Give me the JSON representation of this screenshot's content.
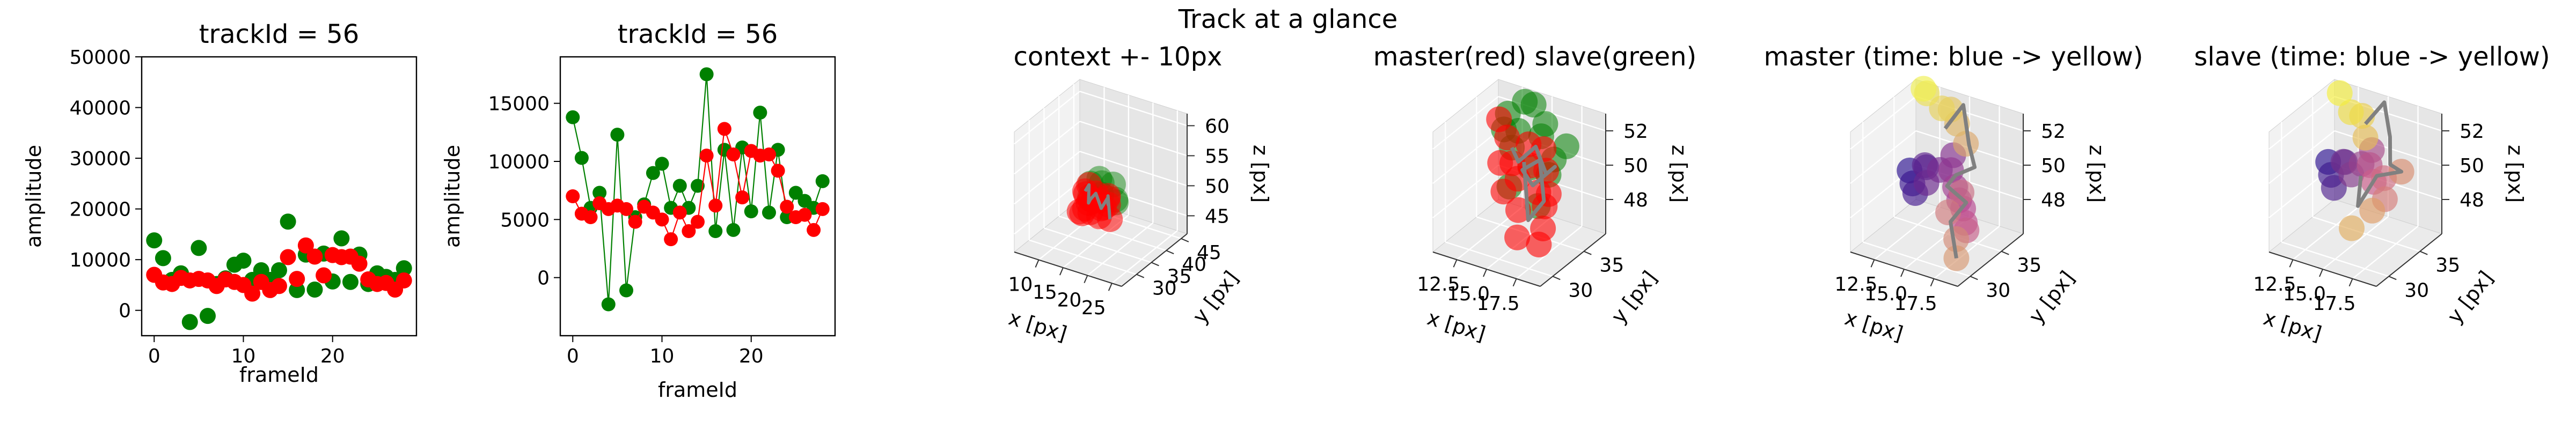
{
  "figure": {
    "suptitle": "Track at a glance"
  },
  "colors": {
    "master": "#ff0000",
    "slave": "#008000",
    "line": "#808080",
    "pane_left": "#f2f2f2",
    "pane_right": "#e6e6e6",
    "pane_floor": "#ebebeb",
    "grid": "#ffffff",
    "time_start_master": "#2a0f8f",
    "time_end_master": "#f0f050",
    "time_end_slave": "#f4ee3c"
  },
  "chart_data": [
    {
      "type": "scatter",
      "title": "trackId = 56",
      "xlabel": "frameId",
      "ylabel": "amplitude",
      "xlim": [
        -1.4,
        29.4
      ],
      "ylim": [
        -5000,
        50000
      ],
      "xticks": [
        "0",
        "10",
        "20"
      ],
      "xtick_values": [
        0,
        10,
        20
      ],
      "yticks": [
        "0",
        "10000",
        "20000",
        "30000",
        "40000",
        "50000"
      ],
      "ytick_values": [
        0,
        10000,
        20000,
        30000,
        40000,
        50000
      ],
      "series": [
        {
          "color": "green",
          "x": [
            0,
            1,
            2,
            3,
            4,
            5,
            6,
            7,
            8,
            9,
            10,
            11,
            12,
            13,
            14,
            15,
            16,
            17,
            18,
            19,
            20,
            21,
            22,
            23,
            24,
            25,
            26,
            27,
            28
          ],
          "values": [
            13800,
            10300,
            6000,
            7300,
            -2300,
            12300,
            -1100,
            5200,
            6300,
            9000,
            9800,
            6000,
            7900,
            6000,
            7900,
            17500,
            4000,
            11000,
            4100,
            11200,
            5700,
            14200,
            5600,
            11000,
            5200,
            7300,
            6600,
            6000,
            8300
          ]
        },
        {
          "color": "red",
          "x": [
            0,
            1,
            2,
            3,
            4,
            5,
            6,
            7,
            8,
            9,
            10,
            11,
            12,
            13,
            14,
            15,
            16,
            17,
            18,
            19,
            20,
            21,
            22,
            23,
            24,
            25,
            26,
            27,
            28
          ],
          "values": [
            7000,
            5500,
            5200,
            6400,
            5900,
            6200,
            5900,
            4800,
            6100,
            5600,
            5000,
            3300,
            5600,
            4000,
            4800,
            10500,
            6200,
            12800,
            10600,
            6900,
            10900,
            10500,
            10600,
            9200,
            6100,
            5200,
            5400,
            4100,
            5900
          ]
        }
      ]
    },
    {
      "type": "line",
      "title": "trackId = 56",
      "xlabel": "frameId",
      "ylabel": "amplitude",
      "xlim": [
        -1.4,
        29.4
      ],
      "ylim": [
        -5000,
        19000
      ],
      "xticks": [
        "0",
        "10",
        "20"
      ],
      "xtick_values": [
        0,
        10,
        20
      ],
      "yticks": [
        "0",
        "5000",
        "10000",
        "15000"
      ],
      "ytick_values": [
        0,
        5000,
        10000,
        15000
      ],
      "series": [
        {
          "color": "green",
          "x": [
            0,
            1,
            2,
            3,
            4,
            5,
            6,
            7,
            8,
            9,
            10,
            11,
            12,
            13,
            14,
            15,
            16,
            17,
            18,
            19,
            20,
            21,
            22,
            23,
            24,
            25,
            26,
            27,
            28
          ],
          "values": [
            13800,
            10300,
            6000,
            7300,
            -2300,
            12300,
            -1100,
            5200,
            6300,
            9000,
            9800,
            6000,
            7900,
            6000,
            7900,
            17500,
            4000,
            11000,
            4100,
            11200,
            5700,
            14200,
            5600,
            11000,
            5200,
            7300,
            6600,
            6000,
            8300
          ]
        },
        {
          "color": "red",
          "x": [
            0,
            1,
            2,
            3,
            4,
            5,
            6,
            7,
            8,
            9,
            10,
            11,
            12,
            13,
            14,
            15,
            16,
            17,
            18,
            19,
            20,
            21,
            22,
            23,
            24,
            25,
            26,
            27,
            28
          ],
          "values": [
            7000,
            5500,
            5200,
            6400,
            5900,
            6200,
            5900,
            4800,
            6100,
            5600,
            5000,
            3300,
            5600,
            4000,
            4800,
            10500,
            6200,
            12800,
            10600,
            6900,
            10900,
            10500,
            10600,
            9200,
            6100,
            5200,
            5400,
            4100,
            5900
          ]
        }
      ]
    },
    {
      "type": "scatter",
      "title": "context +- 10px",
      "xlabel": "x [px]",
      "ylabel": "y [px]",
      "zlabel": "z [px]",
      "xlim": [
        5,
        27
      ],
      "ylim": [
        25,
        47
      ],
      "zlim": [
        42,
        62
      ],
      "xticks": [
        "10",
        "15",
        "20",
        "25"
      ],
      "xtick_values": [
        10,
        15,
        20,
        25
      ],
      "yticks": [
        "30",
        "35",
        "40",
        "45"
      ],
      "ytick_values": [
        30,
        35,
        40,
        45
      ],
      "zticks": [
        "45",
        "50",
        "55",
        "60"
      ],
      "ztick_values": [
        45,
        50,
        55,
        60
      ],
      "master": {
        "x": [
          12.5,
          13.0,
          13.5,
          14.2,
          15.0,
          15.8,
          16.5,
          17.2,
          17.8,
          18.5,
          14.0,
          15.5,
          16.8,
          13.2,
          17.5,
          12.8,
          18.2,
          16.0,
          14.8
        ],
        "y": [
          36.5,
          37.0,
          36.0,
          35.5,
          36.0,
          36.5,
          37.5,
          36.5,
          35.5,
          35.0,
          34.0,
          34.5,
          34.0,
          33.5,
          33.0,
          35.0,
          33.5,
          32.5,
          33.0
        ],
        "z": [
          49.5,
          50.5,
          48.0,
          49.0,
          50.0,
          47.5,
          49.0,
          48.5,
          50.5,
          47.0,
          48.0,
          49.5,
          50.0,
          47.5,
          48.0,
          46.5,
          49.5,
          48.5,
          51.0
        ]
      },
      "slave": {
        "x": [
          13.0,
          14.5,
          15.5,
          17.0,
          18.5,
          16.2,
          12.6,
          19.0
        ],
        "y": [
          37.5,
          38.0,
          37.0,
          38.5,
          37.0,
          36.0,
          38.0,
          36.0
        ],
        "z": [
          50.5,
          51.5,
          49.5,
          51.0,
          49.0,
          52.0,
          48.0,
          50.0
        ]
      }
    },
    {
      "type": "scatter",
      "title": "master(red) slave(green)",
      "xlabel": "x [px]",
      "ylabel": "y [px]",
      "zlabel": "z [px]",
      "xlim": [
        10.5,
        19.5
      ],
      "ylim": [
        28,
        38.5
      ],
      "zlim": [
        46,
        53
      ],
      "xticks": [
        "12.5",
        "15.0",
        "17.5"
      ],
      "xtick_values": [
        12.5,
        15.0,
        17.5
      ],
      "yticks": [
        "30",
        "35"
      ],
      "ytick_values": [
        30,
        35
      ],
      "zticks": [
        "48",
        "50",
        "52"
      ],
      "ztick_values": [
        48,
        50,
        52
      ],
      "master": {
        "x": [
          11.6,
          12.8,
          13.5,
          14.2,
          15.0,
          15.6,
          16.2,
          17.0,
          17.6,
          13.8,
          15.3,
          16.6,
          14.6,
          13.0,
          17.9,
          16.0,
          18.6
        ],
        "y": [
          36.5,
          35.5,
          35.0,
          34.5,
          35.0,
          36.0,
          34.0,
          33.5,
          33.0,
          33.0,
          32.5,
          34.5,
          35.5,
          34.0,
          31.5,
          31.0,
          29.5
        ],
        "z": [
          51.5,
          51.0,
          49.8,
          49.2,
          50.0,
          50.8,
          49.0,
          48.5,
          49.5,
          48.8,
          48.2,
          50.2,
          51.0,
          50.0,
          48.0,
          47.2,
          47.8
        ]
      },
      "slave": {
        "x": [
          12.0,
          12.6,
          13.2,
          14.0,
          14.5,
          15.4,
          16.0,
          16.8,
          17.5,
          18.3,
          14.3,
          15.8,
          17.2,
          13.5
        ],
        "y": [
          36.5,
          36.0,
          35.5,
          35.0,
          36.5,
          36.0,
          35.5,
          34.5,
          34.0,
          34.5,
          33.0,
          33.5,
          32.0,
          37.0
        ],
        "z": [
          51.0,
          52.2,
          50.5,
          51.8,
          53.0,
          51.5,
          52.5,
          50.0,
          51.2,
          52.0,
          49.2,
          50.5,
          49.0,
          52.8
        ]
      },
      "track_x": [
        13.2,
        14.0,
        15.2,
        16.6,
        17.6,
        16.0,
        14.6,
        15.8,
        17.2,
        16.4,
        15.0
      ],
      "track_y": [
        35.5,
        35.0,
        35.5,
        34.5,
        34.0,
        33.5,
        34.5,
        35.0,
        33.0,
        32.0,
        34.0
      ],
      "track_z": [
        50.5,
        50.0,
        51.0,
        50.0,
        50.8,
        49.5,
        49.8,
        50.5,
        49.0,
        48.0,
        50.5
      ]
    },
    {
      "type": "scatter",
      "title": "master (time: blue -> yellow)",
      "xlabel": "x [px]",
      "ylabel": "y [px]",
      "zlabel": "z [px]",
      "xlim": [
        10.5,
        19.5
      ],
      "ylim": [
        28,
        38.5
      ],
      "zlim": [
        46,
        53
      ],
      "xticks": [
        "12.5",
        "15.0",
        "17.5"
      ],
      "xtick_values": [
        12.5,
        15.0,
        17.5
      ],
      "yticks": [
        "30",
        "35"
      ],
      "ytick_values": [
        30,
        35
      ],
      "zticks": [
        "48",
        "50",
        "52"
      ],
      "ztick_values": [
        48,
        50,
        52
      ],
      "master": {
        "x": [
          11.8,
          12.3,
          12.8,
          13.2,
          13.6,
          14.0,
          14.6,
          15.2,
          15.8,
          16.4,
          17.0,
          17.6,
          18.0,
          18.4,
          17.2,
          16.6,
          17.8,
          18.6,
          16.0,
          15.0,
          14.2,
          13.2,
          12.2,
          11.4
        ],
        "y": [
          35.0,
          34.5,
          34.0,
          35.0,
          34.0,
          33.5,
          34.5,
          35.5,
          34.0,
          33.5,
          33.0,
          32.5,
          32.0,
          31.5,
          33.0,
          32.0,
          31.0,
          29.5,
          36.0,
          36.5,
          37.0,
          37.5,
          37.0,
          38.0
        ],
        "z": [
          49.0,
          48.5,
          48.2,
          49.5,
          50.0,
          49.2,
          49.8,
          50.5,
          50.2,
          49.5,
          49.0,
          48.8,
          48.2,
          48.0,
          49.5,
          48.5,
          47.5,
          47.0,
          51.2,
          52.0,
          52.5,
          52.2,
          53.0,
          52.8
        ]
      },
      "track_x": [
        14.0,
        15.0,
        16.0,
        17.0,
        16.2,
        15.2,
        17.6,
        16.8,
        18.6
      ],
      "track_y": [
        36.5,
        37.5,
        36.5,
        35.5,
        34.0,
        34.5,
        33.0,
        32.0,
        29.5
      ],
      "track_z": [
        51.5,
        52.8,
        51.0,
        50.2,
        50.0,
        49.0,
        49.0,
        48.0,
        47.0
      ]
    },
    {
      "type": "scatter",
      "title": "slave (time: blue -> yellow)",
      "xlabel": "x [px]",
      "ylabel": "y [px]",
      "zlabel": "z [px]",
      "xlim": [
        10.5,
        19.5
      ],
      "ylim": [
        28,
        38.5
      ],
      "zlim": [
        46,
        53
      ],
      "xticks": [
        "12.5",
        "15.0",
        "17.5"
      ],
      "xtick_values": [
        12.5,
        15.0,
        17.5
      ],
      "yticks": [
        "30",
        "35"
      ],
      "ytick_values": [
        30,
        35
      ],
      "zticks": [
        "48",
        "50",
        "52"
      ],
      "ztick_values": [
        48,
        50,
        52
      ],
      "slave": {
        "x": [
          11.8,
          12.3,
          12.8,
          13.2,
          13.6,
          14.0,
          14.6,
          15.2,
          15.8,
          16.4,
          17.0,
          17.6,
          18.2,
          16.8,
          15.6,
          14.4,
          13.6,
          12.4,
          11.2
        ],
        "y": [
          35.0,
          34.5,
          34.0,
          35.0,
          34.0,
          34.5,
          35.0,
          35.5,
          34.0,
          33.5,
          34.0,
          33.0,
          34.5,
          32.5,
          31.5,
          36.0,
          37.0,
          37.5,
          38.0
        ],
        "z": [
          49.5,
          49.0,
          48.5,
          49.8,
          50.2,
          49.4,
          50.0,
          50.8,
          50.5,
          49.8,
          50.0,
          49.2,
          50.5,
          48.5,
          47.5,
          51.2,
          52.0,
          51.8,
          52.5
        ]
      },
      "track_x": [
        14.4,
        15.2,
        16.2,
        17.0,
        18.2,
        16.4,
        15.6,
        14.8
      ],
      "track_y": [
        36.0,
        37.5,
        36.5,
        35.0,
        34.5,
        34.0,
        32.5,
        34.5
      ],
      "track_z": [
        52.0,
        53.0,
        51.5,
        50.5,
        50.5,
        50.0,
        48.5,
        49.5
      ]
    }
  ]
}
